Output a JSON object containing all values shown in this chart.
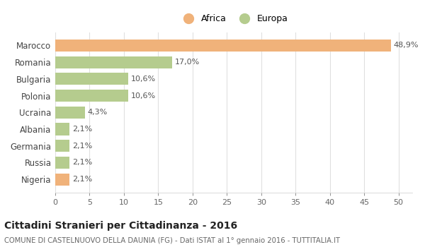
{
  "categories": [
    "Marocco",
    "Romania",
    "Bulgaria",
    "Polonia",
    "Ucraina",
    "Albania",
    "Germania",
    "Russia",
    "Nigeria"
  ],
  "values": [
    48.9,
    17.0,
    10.6,
    10.6,
    4.3,
    2.1,
    2.1,
    2.1,
    2.1
  ],
  "labels": [
    "48,9%",
    "17,0%",
    "10,6%",
    "10,6%",
    "4,3%",
    "2,1%",
    "2,1%",
    "2,1%",
    "2,1%"
  ],
  "colors": [
    "#f0b27a",
    "#b5cc8e",
    "#b5cc8e",
    "#b5cc8e",
    "#b5cc8e",
    "#b5cc8e",
    "#b5cc8e",
    "#b5cc8e",
    "#f0b27a"
  ],
  "legend_labels": [
    "Africa",
    "Europa"
  ],
  "legend_colors": [
    "#f0b27a",
    "#b5cc8e"
  ],
  "title": "Cittadini Stranieri per Cittadinanza - 2016",
  "subtitle": "COMUNE DI CASTELNUOVO DELLA DAUNIA (FG) - Dati ISTAT al 1° gennaio 2016 - TUTTITALIA.IT",
  "xlim": [
    0,
    52
  ],
  "xticks": [
    0,
    5,
    10,
    15,
    20,
    25,
    30,
    35,
    40,
    45,
    50
  ],
  "background_color": "#ffffff",
  "grid_color": "#e0e0e0",
  "bar_height": 0.72,
  "label_fontsize": 8.0,
  "ytick_fontsize": 8.5,
  "xtick_fontsize": 8.0
}
